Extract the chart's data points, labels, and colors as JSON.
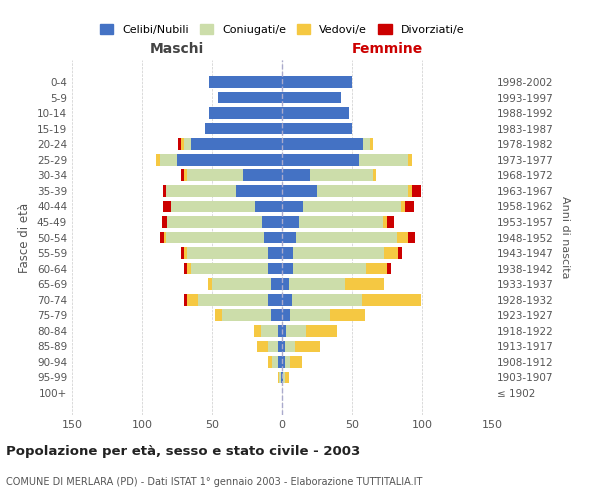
{
  "age_groups": [
    "100+",
    "95-99",
    "90-94",
    "85-89",
    "80-84",
    "75-79",
    "70-74",
    "65-69",
    "60-64",
    "55-59",
    "50-54",
    "45-49",
    "40-44",
    "35-39",
    "30-34",
    "25-29",
    "20-24",
    "15-19",
    "10-14",
    "5-9",
    "0-4"
  ],
  "birth_years": [
    "≤ 1902",
    "1903-1907",
    "1908-1912",
    "1913-1917",
    "1918-1922",
    "1923-1927",
    "1928-1932",
    "1933-1937",
    "1938-1942",
    "1943-1947",
    "1948-1952",
    "1953-1957",
    "1958-1962",
    "1963-1967",
    "1968-1972",
    "1973-1977",
    "1978-1982",
    "1983-1987",
    "1988-1992",
    "1993-1997",
    "1998-2002"
  ],
  "maschi": {
    "celibi": [
      0,
      1,
      3,
      3,
      3,
      8,
      10,
      8,
      10,
      10,
      13,
      14,
      19,
      33,
      28,
      75,
      65,
      55,
      52,
      46,
      52
    ],
    "coniugati": [
      0,
      1,
      4,
      7,
      12,
      35,
      50,
      42,
      55,
      58,
      70,
      68,
      60,
      50,
      40,
      12,
      5,
      0,
      0,
      0,
      0
    ],
    "vedovi": [
      0,
      1,
      3,
      8,
      5,
      5,
      8,
      3,
      3,
      2,
      1,
      0,
      0,
      0,
      2,
      3,
      2,
      0,
      0,
      0,
      0
    ],
    "divorziati": [
      0,
      0,
      0,
      0,
      0,
      0,
      2,
      0,
      2,
      2,
      3,
      4,
      6,
      2,
      2,
      0,
      2,
      0,
      0,
      0,
      0
    ]
  },
  "femmine": {
    "nubili": [
      0,
      1,
      2,
      2,
      3,
      6,
      7,
      5,
      8,
      8,
      10,
      12,
      15,
      25,
      20,
      55,
      58,
      50,
      48,
      42,
      50
    ],
    "coniugate": [
      0,
      1,
      4,
      7,
      14,
      28,
      50,
      40,
      52,
      65,
      72,
      60,
      70,
      65,
      45,
      35,
      5,
      0,
      0,
      0,
      0
    ],
    "vedove": [
      0,
      3,
      8,
      18,
      22,
      25,
      42,
      28,
      15,
      10,
      8,
      3,
      3,
      3,
      2,
      3,
      2,
      0,
      0,
      0,
      0
    ],
    "divorziate": [
      0,
      0,
      0,
      0,
      0,
      0,
      0,
      0,
      3,
      3,
      5,
      5,
      6,
      6,
      0,
      0,
      0,
      0,
      0,
      0,
      0
    ]
  },
  "colors": {
    "celibi_nubili": "#4472C4",
    "coniugati": "#CCDDAA",
    "vedovi": "#F5C842",
    "divorziati": "#CC0000"
  },
  "xlim": 150,
  "title": "Popolazione per età, sesso e stato civile - 2003",
  "subtitle": "COMUNE DI MERLARA (PD) - Dati ISTAT 1° gennaio 2003 - Elaborazione TUTTITALIA.IT",
  "ylabel_left": "Fasce di età",
  "ylabel_right": "Anni di nascita"
}
